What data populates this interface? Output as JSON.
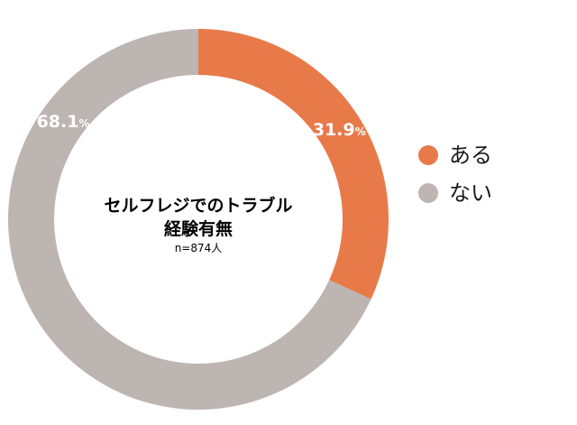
{
  "chart_data": {
    "type": "pie",
    "donut": true,
    "center_title": [
      "セルフレジでのトラブル",
      "経験有無"
    ],
    "center_note": "n=874人",
    "unit": "%",
    "slices": [
      {
        "label": "ある",
        "value": 31.9,
        "display": "31.9",
        "color": "#E87A4A"
      },
      {
        "label": "ない",
        "value": 68.1,
        "display": "68.1",
        "color": "#BDB5B2"
      }
    ],
    "legend_position": "right"
  }
}
